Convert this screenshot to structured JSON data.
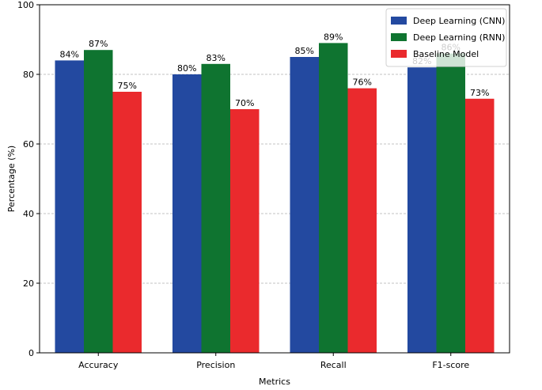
{
  "chart_data": {
    "type": "bar",
    "categories": [
      "Accuracy",
      "Precision",
      "Recall",
      "F1-score"
    ],
    "series": [
      {
        "name": "Deep Learning (CNN)",
        "values": [
          84,
          80,
          85,
          82
        ],
        "color": "#2349a0",
        "labels": [
          "84%",
          "80%",
          "85%",
          "82%"
        ]
      },
      {
        "name": "Deep Learning (RNN)",
        "values": [
          87,
          83,
          89,
          86
        ],
        "color": "#0f7430",
        "labels": [
          "87%",
          "83%",
          "89%",
          "86%"
        ]
      },
      {
        "name": "Baseline Model",
        "values": [
          75,
          70,
          76,
          73
        ],
        "color": "#ea2a2d",
        "labels": [
          "75%",
          "70%",
          "76%",
          "73%"
        ]
      }
    ],
    "xlabel": "Metrics",
    "ylabel": "Percentage (%)",
    "ylim": [
      0,
      100
    ],
    "yticks": [
      0,
      20,
      40,
      60,
      80,
      100
    ],
    "grid": "y-dashed",
    "legend": "top-right"
  }
}
